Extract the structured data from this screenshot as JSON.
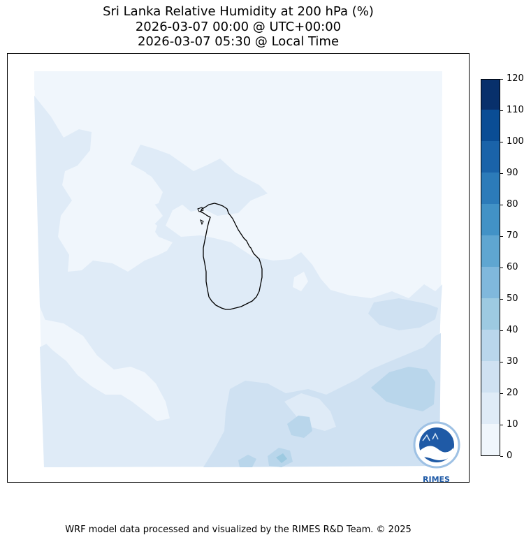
{
  "title": {
    "line1": "Sri Lanka Relative Humidity at 200 hPa (%)",
    "line2": "2026-03-07 00:00 @ UTC+00:00",
    "line3": "2026-03-07 05:30 @ Local Time"
  },
  "chart_data": {
    "type": "heatmap",
    "variable": "Relative Humidity",
    "level": "200 hPa",
    "units": "%",
    "region": "Sri Lanka",
    "colorbar": {
      "levels": [
        0,
        10,
        20,
        30,
        40,
        50,
        60,
        70,
        80,
        90,
        100,
        110,
        120
      ],
      "tick_labels": [
        "0",
        "10",
        "20",
        "30",
        "40",
        "50",
        "60",
        "70",
        "80",
        "90",
        "100",
        "110",
        "120"
      ],
      "colors": [
        "#f0f6fc",
        "#dfebf7",
        "#cfe1f2",
        "#b9d6eb",
        "#9dcae1",
        "#80b8dc",
        "#5fa6d1",
        "#4292c6",
        "#2c7bb9",
        "#1a63a9",
        "#0a4d95",
        "#08306b"
      ]
    },
    "field_levels_present": [
      "0-10",
      "10-20",
      "20-30",
      "30-40"
    ]
  },
  "colors": {
    "land_outline": "#000000",
    "logo_blue": "#1f5aa6"
  },
  "logo": {
    "text": "RIMES"
  },
  "footer": "WRF model data processed and visualized by the RIMES R&D Team. © 2025"
}
